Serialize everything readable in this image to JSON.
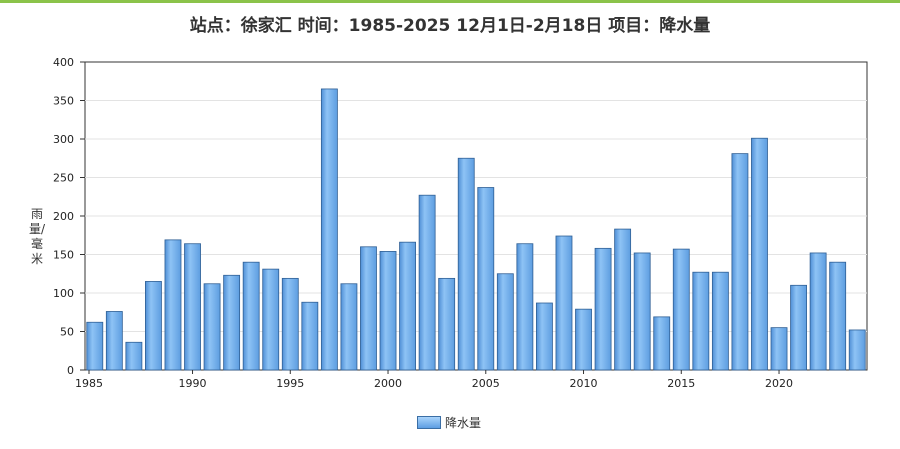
{
  "chart_data": {
    "type": "bar",
    "title": "站点：徐家汇 时间：1985-2025  12月1日-2月18日 项目：降水量",
    "ylabel": "雨量/毫米",
    "xlabel": "",
    "ylim": [
      0,
      400
    ],
    "yticks": [
      0,
      50,
      100,
      150,
      200,
      250,
      300,
      350,
      400
    ],
    "xticks": [
      "1985",
      "1990",
      "1995",
      "2000",
      "2005",
      "2010",
      "2015",
      "2020"
    ],
    "legend": {
      "position": "bottom-center"
    },
    "grid": true,
    "bar_color": "#6aaae8",
    "categories": [
      1985,
      1986,
      1987,
      1988,
      1989,
      1990,
      1991,
      1992,
      1993,
      1994,
      1995,
      1996,
      1997,
      1998,
      1999,
      2000,
      2001,
      2002,
      2003,
      2004,
      2005,
      2006,
      2007,
      2008,
      2009,
      2010,
      2011,
      2012,
      2013,
      2014,
      2015,
      2016,
      2017,
      2018,
      2019,
      2020,
      2021,
      2022,
      2023,
      2024
    ],
    "series": [
      {
        "name": "降水量",
        "values": [
          62,
          76,
          36,
          115,
          169,
          164,
          112,
          123,
          140,
          131,
          119,
          88,
          365,
          112,
          160,
          154,
          166,
          227,
          119,
          275,
          237,
          125,
          164,
          87,
          174,
          79,
          158,
          183,
          152,
          69,
          157,
          127,
          127,
          281,
          301,
          55,
          110,
          152,
          140,
          52
        ]
      }
    ]
  }
}
